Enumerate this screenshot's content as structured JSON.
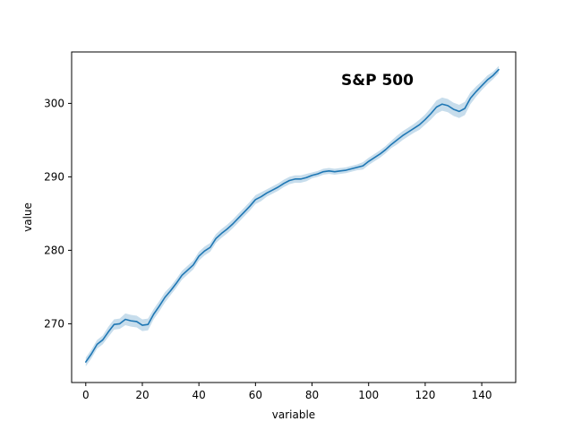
{
  "chart_data": {
    "type": "line",
    "title": "S&P 500",
    "xlabel": "variable",
    "ylabel": "value",
    "xlim": [
      -5,
      152
    ],
    "ylim": [
      262,
      307
    ],
    "xticks": [
      0,
      20,
      40,
      60,
      80,
      100,
      120,
      140
    ],
    "yticks": [
      270,
      280,
      290,
      300
    ],
    "grid": false,
    "legend": "none",
    "colors": {
      "line": "#1f77b4",
      "band": "#1f77b4",
      "axes": "#000000"
    },
    "series": [
      {
        "x": [
          0,
          2,
          4,
          6,
          8,
          10,
          12,
          14,
          16,
          18,
          20,
          22,
          24,
          26,
          28,
          30,
          32,
          34,
          36,
          38,
          40,
          42,
          44,
          46,
          48,
          50,
          52,
          54,
          56,
          58,
          60,
          62,
          64,
          66,
          68,
          70,
          72,
          74,
          76,
          78,
          80,
          82,
          84,
          86,
          88,
          90,
          92,
          94,
          96,
          98,
          100,
          102,
          104,
          106,
          108,
          110,
          112,
          114,
          116,
          118,
          120,
          122,
          124,
          126,
          128,
          130,
          132,
          134,
          136,
          138,
          140,
          142,
          144,
          146
        ],
        "values": [
          264.8,
          265.9,
          267.2,
          267.8,
          268.9,
          269.9,
          270.0,
          270.6,
          270.4,
          270.3,
          269.8,
          269.9,
          271.3,
          272.4,
          273.6,
          274.5,
          275.5,
          276.6,
          277.3,
          278.0,
          279.2,
          279.9,
          280.4,
          281.6,
          282.3,
          282.9,
          283.6,
          284.4,
          285.2,
          286.0,
          286.9,
          287.3,
          287.8,
          288.2,
          288.6,
          289.1,
          289.5,
          289.7,
          289.7,
          289.9,
          290.2,
          290.4,
          290.7,
          290.8,
          290.7,
          290.8,
          290.9,
          291.1,
          291.3,
          291.5,
          292.1,
          292.6,
          293.1,
          293.7,
          294.4,
          295.0,
          295.6,
          296.1,
          296.6,
          297.1,
          297.8,
          298.6,
          299.5,
          299.9,
          299.7,
          299.2,
          298.9,
          299.3,
          300.7,
          301.6,
          302.4,
          303.2,
          303.8,
          304.6
        ],
        "ci_halfwidth": [
          0.6,
          0.6,
          0.6,
          0.6,
          0.7,
          0.7,
          0.7,
          0.8,
          0.8,
          0.8,
          0.8,
          0.8,
          0.7,
          0.7,
          0.7,
          0.6,
          0.6,
          0.6,
          0.6,
          0.6,
          0.6,
          0.6,
          0.6,
          0.6,
          0.6,
          0.6,
          0.6,
          0.6,
          0.6,
          0.6,
          0.6,
          0.6,
          0.5,
          0.5,
          0.5,
          0.5,
          0.5,
          0.5,
          0.5,
          0.5,
          0.4,
          0.4,
          0.4,
          0.4,
          0.4,
          0.4,
          0.4,
          0.4,
          0.4,
          0.5,
          0.5,
          0.5,
          0.5,
          0.5,
          0.5,
          0.6,
          0.6,
          0.6,
          0.6,
          0.7,
          0.7,
          0.8,
          0.9,
          0.9,
          0.9,
          0.9,
          0.9,
          0.9,
          0.8,
          0.7,
          0.6,
          0.6,
          0.5,
          0.5
        ]
      }
    ]
  }
}
